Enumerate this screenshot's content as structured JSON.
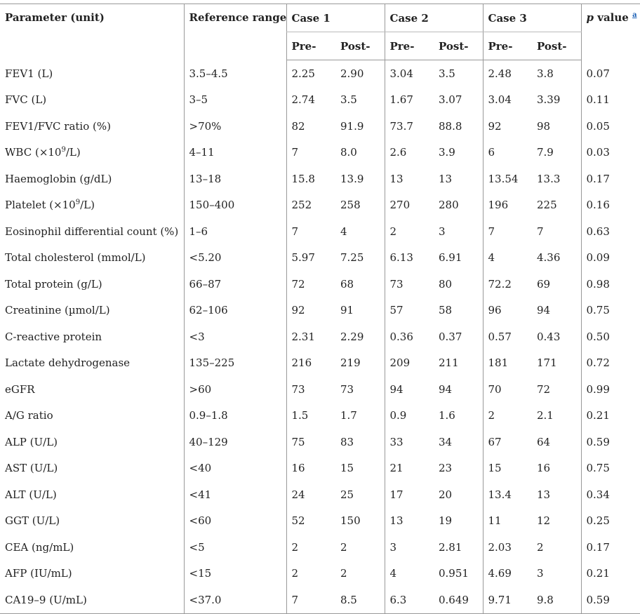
{
  "header": {
    "parameter": "Parameter (unit)",
    "reference": "Reference range",
    "cases": [
      "Case 1",
      "Case 2",
      "Case 3"
    ],
    "pre": "Pre-",
    "post": "Post-",
    "p_value": {
      "italic": "p",
      "text": "value",
      "footnote": "a"
    }
  },
  "table": {
    "rows": [
      [
        "FEV1 (L)",
        "3.5–4.5",
        "2.25",
        "2.90",
        "3.04",
        "3.5",
        "2.48",
        "3.8",
        "0.07"
      ],
      [
        "FVC (L)",
        "3–5",
        "2.74",
        "3.5",
        "1.67",
        "3.07",
        "3.04",
        "3.39",
        "0.11"
      ],
      [
        "FEV1/FVC ratio (%)",
        ">70%",
        "82",
        "91.9",
        "73.7",
        "88.8",
        "92",
        "98",
        "0.05"
      ],
      [
        [
          "WBC (×10",
          "9",
          "/L)"
        ],
        "4–11",
        "7",
        "8.0",
        "2.6",
        "3.9",
        "6",
        "7.9",
        "0.03"
      ],
      [
        "Haemoglobin (g/dL)",
        "13–18",
        "15.8",
        "13.9",
        "13",
        "13",
        "13.54",
        "13.3",
        "0.17"
      ],
      [
        [
          "Platelet (×10",
          "9",
          "/L)"
        ],
        "150–400",
        "252",
        "258",
        "270",
        "280",
        "196",
        "225",
        "0.16"
      ],
      [
        "Eosinophil differential count (%)",
        "1–6",
        "7",
        "4",
        "2",
        "3",
        "7",
        "7",
        "0.63"
      ],
      [
        "Total cholesterol (mmol/L)",
        "<5.20",
        "5.97",
        "7.25",
        "6.13",
        "6.91",
        "4",
        "4.36",
        "0.09"
      ],
      [
        "Total protein (g/L)",
        "66–87",
        "72",
        "68",
        "73",
        "80",
        "72.2",
        "69",
        "0.98"
      ],
      [
        "Creatinine (µmol/L)",
        "62–106",
        "92",
        "91",
        "57",
        "58",
        "96",
        "94",
        "0.75"
      ],
      [
        "C-reactive protein",
        "<3",
        "2.31",
        "2.29",
        "0.36",
        "0.37",
        "0.57",
        "0.43",
        "0.50"
      ],
      [
        "Lactate dehydrogenase",
        "135–225",
        "216",
        "219",
        "209",
        "211",
        "181",
        "171",
        "0.72"
      ],
      [
        "eGFR",
        ">60",
        "73",
        "73",
        "94",
        "94",
        "70",
        "72",
        "0.99"
      ],
      [
        "A/G ratio",
        "0.9–1.8",
        "1.5",
        "1.7",
        "0.9",
        "1.6",
        "2",
        "2.1",
        "0.21"
      ],
      [
        "ALP (U/L)",
        "40–129",
        "75",
        "83",
        "33",
        "34",
        "67",
        "64",
        "0.59"
      ],
      [
        "AST (U/L)",
        "<40",
        "16",
        "15",
        "21",
        "23",
        "15",
        "16",
        "0.75"
      ],
      [
        "ALT (U/L)",
        "<41",
        "24",
        "25",
        "17",
        "20",
        "13.4",
        "13",
        "0.34"
      ],
      [
        "GGT (U/L)",
        "<60",
        "52",
        "150",
        "13",
        "19",
        "11",
        "12",
        "0.25"
      ],
      [
        "CEA (ng/mL)",
        "<5",
        "2",
        "2",
        "3",
        "2.81",
        "2.03",
        "2",
        "0.17"
      ],
      [
        "AFP (IU/mL)",
        "<15",
        "2",
        "2",
        "4",
        "0.951",
        "4.69",
        "3",
        "0.21"
      ],
      [
        "CA19–9 (U/mL)",
        "<37.0",
        "7",
        "8.5",
        "6.3",
        "0.649",
        "9.71",
        "9.8",
        "0.59"
      ]
    ]
  }
}
